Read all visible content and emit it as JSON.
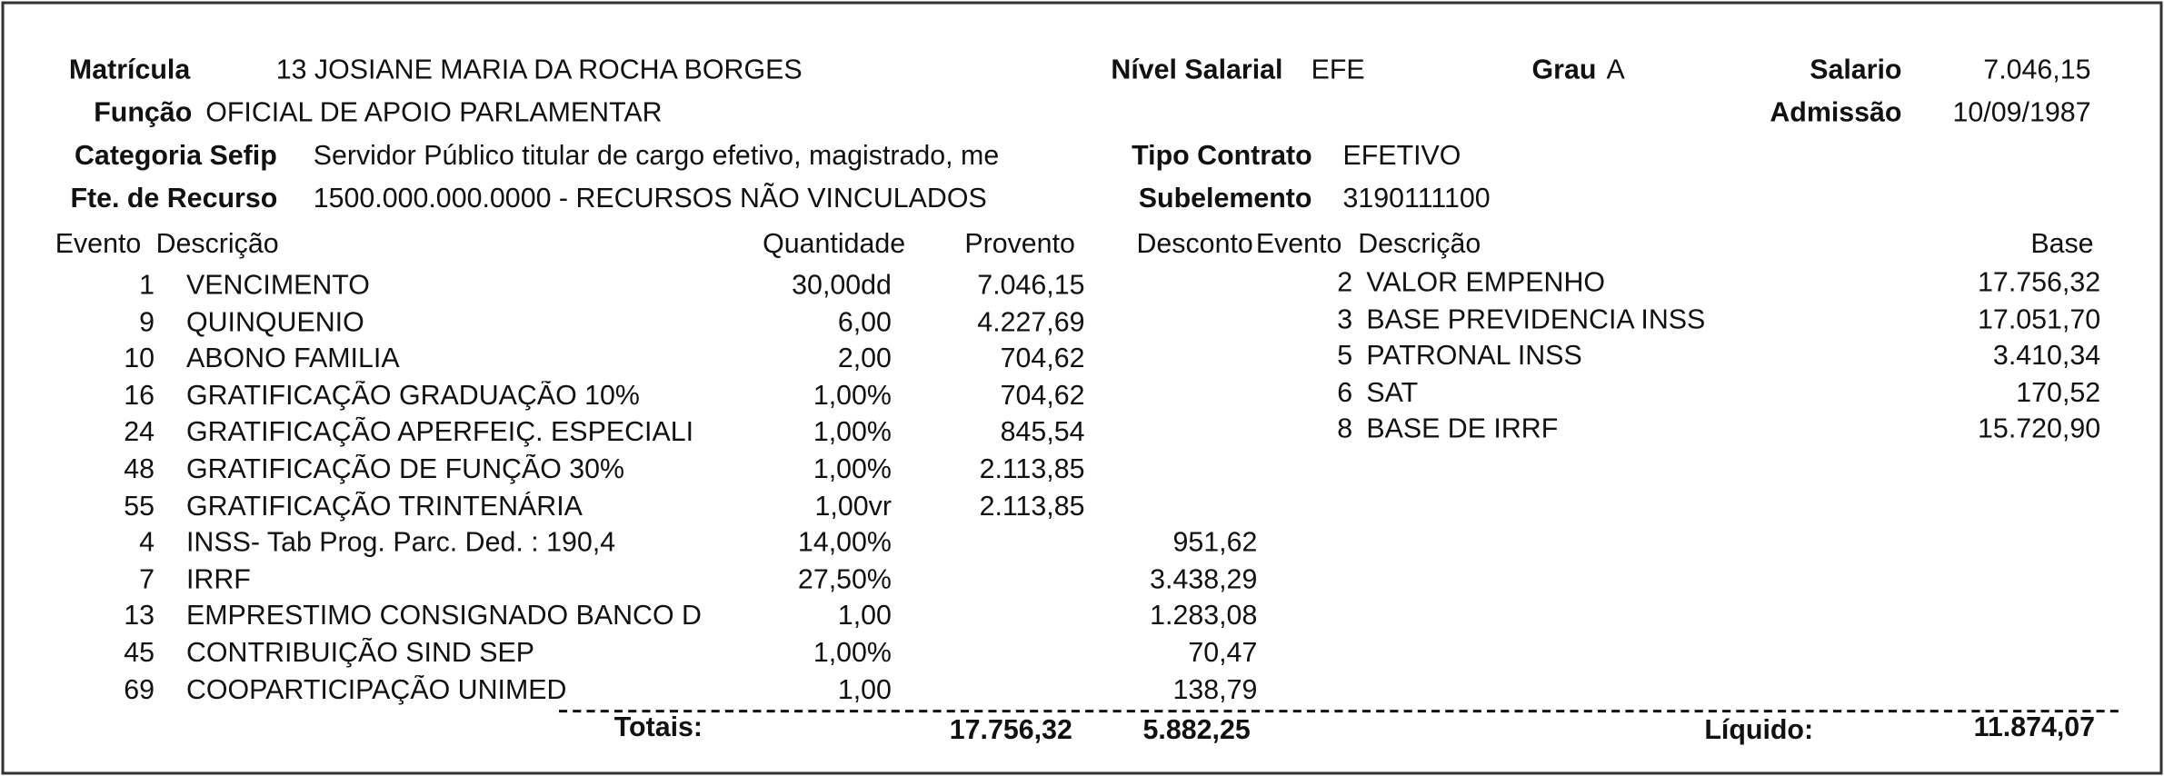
{
  "header": {
    "fields": [
      {
        "label": "Matrícula",
        "value": "13 JOSIANE MARIA DA ROCHA BORGES"
      },
      {
        "label": "Nível Salarial",
        "value": "EFE"
      },
      {
        "label": "Grau",
        "value": "A"
      },
      {
        "label": "Salario",
        "value": "7.046,15"
      },
      {
        "label": "Função",
        "value": "OFICIAL DE APOIO PARLAMENTAR"
      },
      {
        "label": "Admissão",
        "value": "10/09/1987"
      },
      {
        "label": "Categoria Sefip",
        "value": "Servidor Público titular de cargo efetivo, magistrado, me"
      },
      {
        "label": "Tipo Contrato",
        "value": "EFETIVO"
      },
      {
        "label": "Fte. de Recurso",
        "value": "1500.000.000.0000 - RECURSOS NÃO VINCULADOS"
      },
      {
        "label": "Subelemento",
        "value": "3190111100"
      }
    ]
  },
  "events": {
    "columns": [
      "Evento",
      "Descrição",
      "Quantidade",
      "Provento",
      "Desconto"
    ],
    "rows": [
      {
        "code": "1",
        "description": "VENCIMENTO",
        "quantity": "30,00dd",
        "provento": "7.046,15"
      },
      {
        "code": "9",
        "description": "QUINQUENIO",
        "quantity": "6,00",
        "provento": "4.227,69"
      },
      {
        "code": "10",
        "description": "ABONO FAMILIA",
        "quantity": "2,00",
        "provento": "704,62"
      },
      {
        "code": "16",
        "description": "GRATIFICAÇÃO GRADUAÇÃO 10%",
        "quantity": "1,00%",
        "provento": "704,62"
      },
      {
        "code": "24",
        "description": "GRATIFICAÇÃO APERFEIÇ. ESPECIALI",
        "quantity": "1,00%",
        "provento": "845,54"
      },
      {
        "code": "48",
        "description": "GRATIFICAÇÃO DE FUNÇÃO 30%",
        "quantity": "1,00%",
        "provento": "2.113,85"
      },
      {
        "code": "55",
        "description": "GRATIFICAÇÃO TRINTENÁRIA",
        "quantity": "1,00vr",
        "provento": "2.113,85"
      },
      {
        "code": "4",
        "description": "INSS- Tab Prog. Parc. Ded. : 190,4",
        "quantity": "14,00%",
        "desconto": "951,62"
      },
      {
        "code": "7",
        "description": "IRRF",
        "quantity": "27,50%",
        "desconto": "3.438,29"
      },
      {
        "code": "13",
        "description": "EMPRESTIMO CONSIGNADO BANCO D",
        "quantity": "1,00",
        "desconto": "1.283,08"
      },
      {
        "code": "45",
        "description": "CONTRIBUIÇÃO SIND SEP",
        "quantity": "1,00%",
        "desconto": "70,47"
      },
      {
        "code": "69",
        "description": "COOPARTICIPAÇÃO UNIMED",
        "quantity": "1,00",
        "desconto": "138,79"
      }
    ]
  },
  "bases": {
    "columns": [
      "Evento",
      "Descrição",
      "Base"
    ],
    "rows": [
      {
        "code": "2",
        "description": "VALOR EMPENHO",
        "base": "17.756,32"
      },
      {
        "code": "3",
        "description": "BASE PREVIDENCIA INSS",
        "base": "17.051,70"
      },
      {
        "code": "5",
        "description": "PATRONAL INSS",
        "base": "3.410,34"
      },
      {
        "code": "6",
        "description": "SAT",
        "base": "170,52"
      },
      {
        "code": "8",
        "description": "BASE DE IRRF",
        "base": "15.720,90"
      }
    ]
  },
  "totals": {
    "label": "Totais:",
    "provento": "17.756,32",
    "desconto": "5.882,25",
    "net_label": "Líquido:",
    "net": "11.874,07"
  }
}
